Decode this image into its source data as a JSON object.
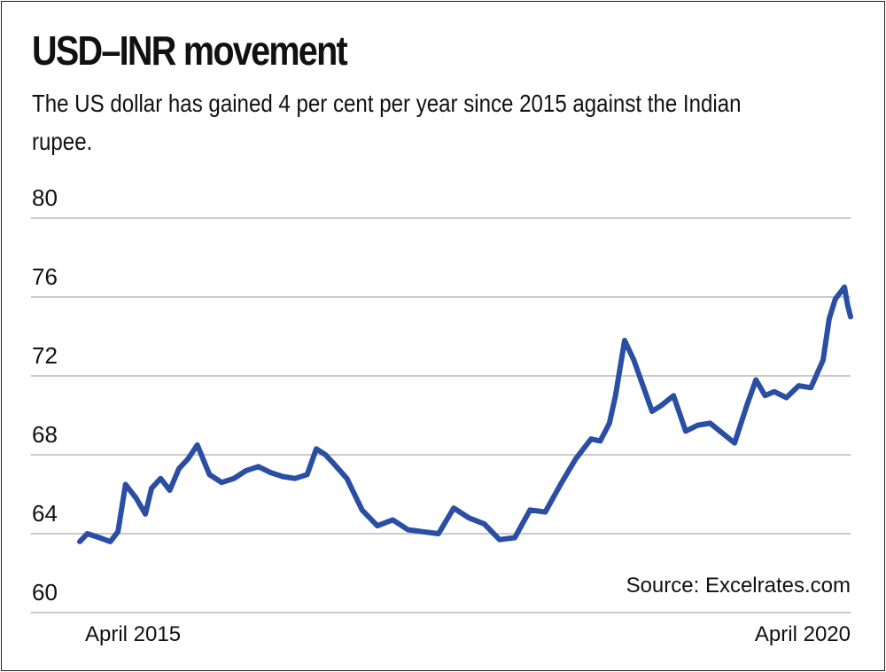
{
  "chart_data": {
    "type": "line",
    "title": "USD–INR movement",
    "subtitle": "The US dollar has gained 4 per cent per year since 2015 against the Indian rupee.",
    "xlabel": "",
    "ylabel": "",
    "ylim": [
      60,
      80
    ],
    "y_ticks": [
      "80",
      "76",
      "72",
      "68",
      "64",
      "60"
    ],
    "x_tick_labels": [
      "April 2015",
      "April 2020"
    ],
    "grid": true,
    "source": "Source: Excelrates.com",
    "line_color": "#2a4ea3",
    "series": [
      {
        "name": "USD-INR",
        "x": [
          2015.25,
          2015.3,
          2015.38,
          2015.45,
          2015.5,
          2015.55,
          2015.62,
          2015.68,
          2015.72,
          2015.78,
          2015.84,
          2015.9,
          2015.96,
          2016.02,
          2016.1,
          2016.18,
          2016.26,
          2016.34,
          2016.42,
          2016.5,
          2016.58,
          2016.66,
          2016.74,
          2016.8,
          2016.86,
          2016.92,
          2017.0,
          2017.1,
          2017.2,
          2017.3,
          2017.4,
          2017.5,
          2017.6,
          2017.7,
          2017.8,
          2017.9,
          2018.0,
          2018.1,
          2018.2,
          2018.3,
          2018.4,
          2018.5,
          2018.55,
          2018.6,
          2018.66,
          2018.72,
          2018.76,
          2018.82,
          2018.88,
          2018.94,
          2019.0,
          2019.06,
          2019.14,
          2019.22,
          2019.3,
          2019.38,
          2019.46,
          2019.54,
          2019.62,
          2019.68,
          2019.74,
          2019.8,
          2019.88,
          2019.96,
          2020.04,
          2020.12,
          2020.16,
          2020.2,
          2020.22,
          2020.26,
          2020.28,
          2020.3
        ],
        "values": [
          63.6,
          64.0,
          63.8,
          63.6,
          64.1,
          66.5,
          65.8,
          65.0,
          66.3,
          66.8,
          66.2,
          67.3,
          67.8,
          68.5,
          67.0,
          66.6,
          66.8,
          67.2,
          67.4,
          67.1,
          66.9,
          66.8,
          67.0,
          68.3,
          68.0,
          67.5,
          66.8,
          65.2,
          64.4,
          64.7,
          64.2,
          64.1,
          64.0,
          65.3,
          64.8,
          64.5,
          63.7,
          63.8,
          65.2,
          65.1,
          66.5,
          67.8,
          68.3,
          68.8,
          68.7,
          69.6,
          71.0,
          73.8,
          72.8,
          71.5,
          70.2,
          70.5,
          71.0,
          69.2,
          69.5,
          69.6,
          69.1,
          68.6,
          70.5,
          71.8,
          71.0,
          71.2,
          70.9,
          71.5,
          71.4,
          72.8,
          74.9,
          75.9,
          76.1,
          76.5,
          75.6,
          75.0
        ]
      }
    ]
  }
}
